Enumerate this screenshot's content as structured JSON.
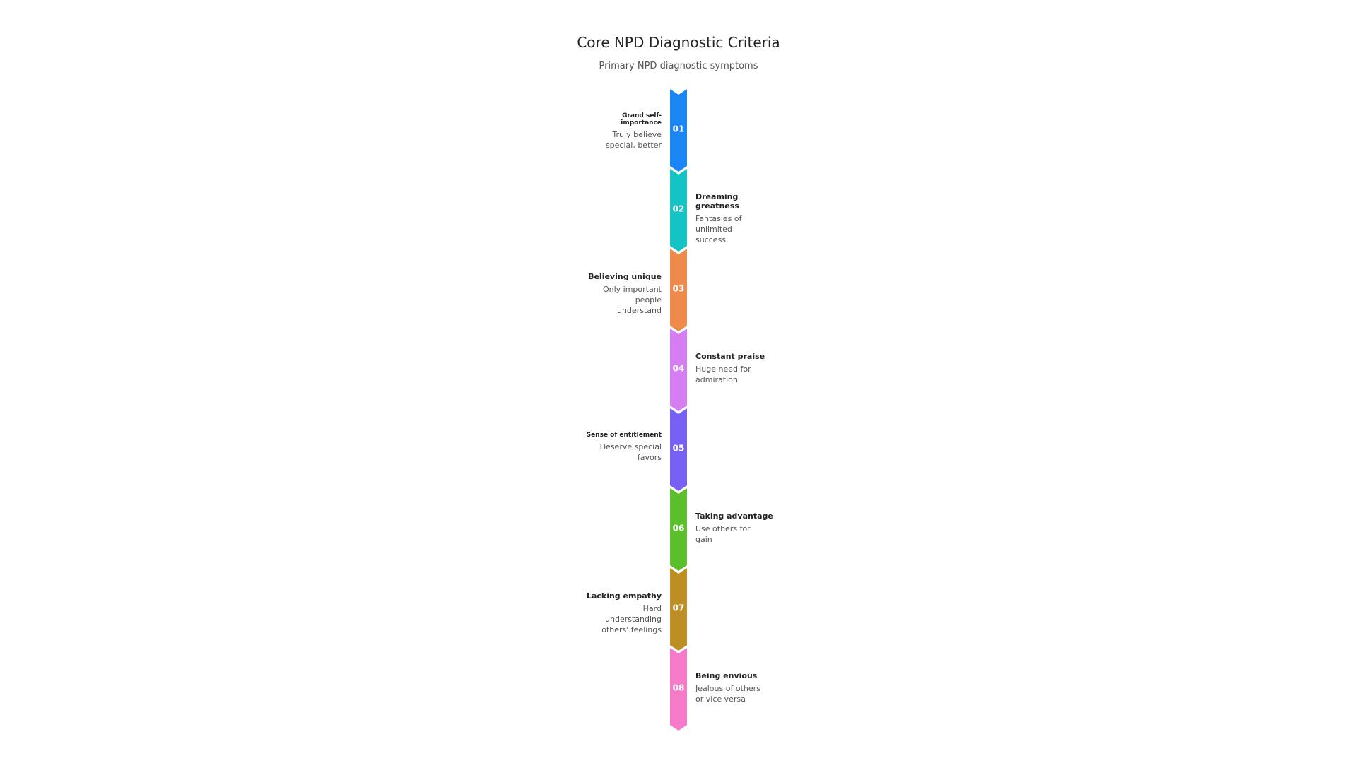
{
  "header": {
    "title": "Core NPD Diagnostic Criteria",
    "subtitle": "Primary NPD diagnostic symptoms"
  },
  "steps": [
    {
      "number": "01",
      "title": "Grand self-importance",
      "description": "Truly believe special, better",
      "color": "#1a86f5"
    },
    {
      "number": "02",
      "title": "Dreaming greatness",
      "description": "Fantasies of unlimited success",
      "color": "#14c4c4"
    },
    {
      "number": "03",
      "title": "Believing unique",
      "description": "Only important people understand",
      "color": "#ef8a4c"
    },
    {
      "number": "04",
      "title": "Constant praise",
      "description": "Huge need for admiration",
      "color": "#d57ef2"
    },
    {
      "number": "05",
      "title": "Sense of entitlement",
      "description": "Deserve special favors",
      "color": "#7660f5"
    },
    {
      "number": "06",
      "title": "Taking advantage",
      "description": "Use others for gain",
      "color": "#5bbf2c"
    },
    {
      "number": "07",
      "title": "Lacking empathy",
      "description": "Hard understanding others' feelings",
      "color": "#bd8e24"
    },
    {
      "number": "08",
      "title": "Being envious",
      "description": "Jealous of others or vice versa",
      "color": "#f57ac8"
    }
  ]
}
